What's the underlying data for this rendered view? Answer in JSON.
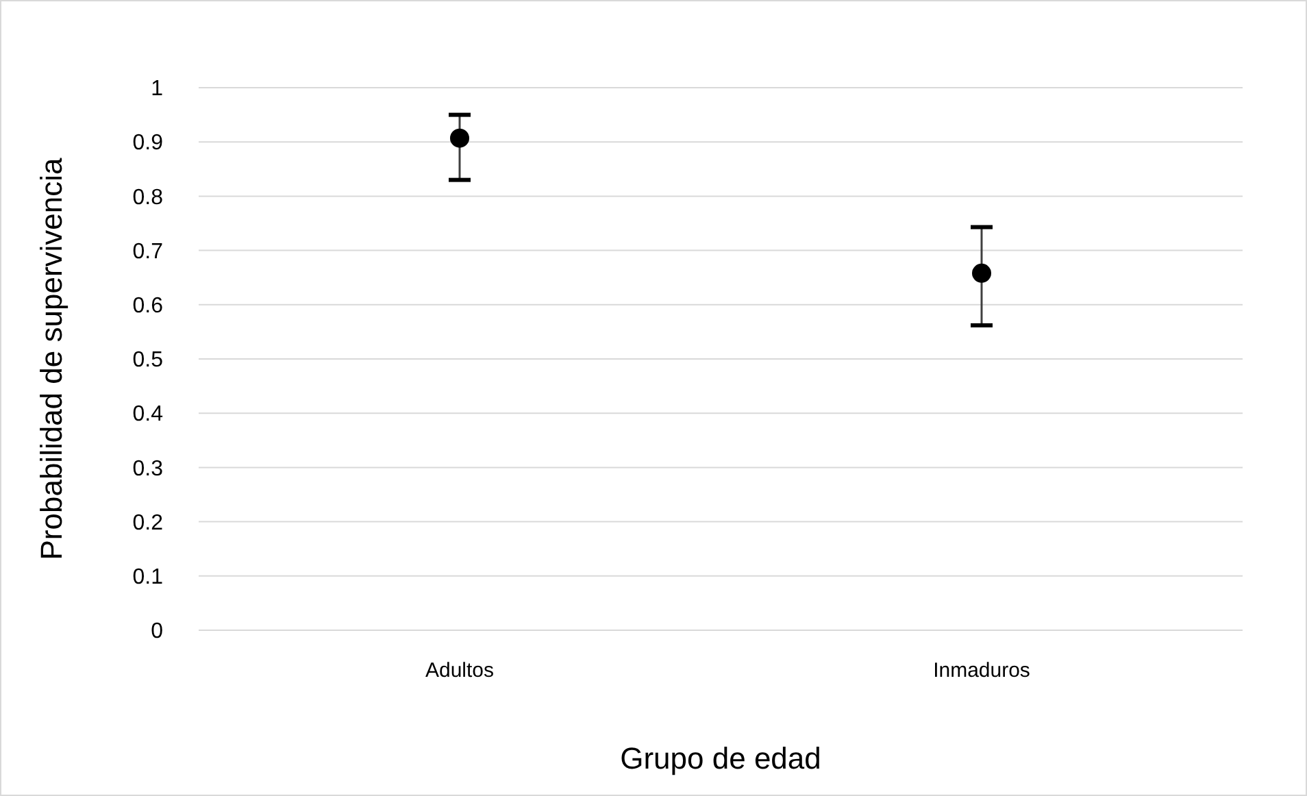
{
  "chart_data": {
    "type": "scatter",
    "xlabel": "Grupo de edad",
    "ylabel": "Probabilidad de supervivencia",
    "categories": [
      "Adultos",
      "Inmaduros"
    ],
    "series": [
      {
        "color": "#000000",
        "values": [
          0.907,
          0.658
        ],
        "errors": [
          [
            0.83,
            0.95
          ],
          [
            0.562,
            0.743
          ]
        ]
      }
    ],
    "ylim": [
      0,
      1
    ],
    "yticks": [
      0,
      0.1,
      0.2,
      0.3,
      0.4,
      0.5,
      0.6,
      0.7,
      0.8,
      0.9,
      1
    ],
    "grid": "y",
    "marker": "circle"
  }
}
